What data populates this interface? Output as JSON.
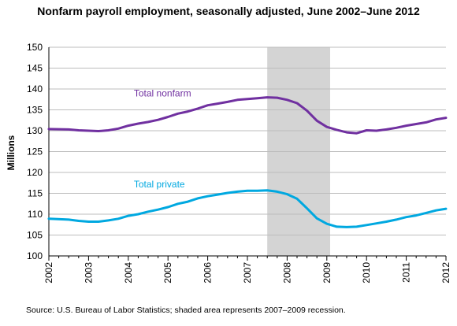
{
  "chart_data": {
    "type": "line",
    "title": "Nonfarm payroll employment, seasonally adjusted, June 2002–June 2012",
    "ylabel": "Millions",
    "xlabel": "",
    "ylim": [
      100,
      150
    ],
    "yticks": [
      100,
      105,
      110,
      115,
      120,
      125,
      130,
      135,
      140,
      145,
      150
    ],
    "xlim": [
      2002.0,
      2012.0
    ],
    "xticks": [
      "2002",
      "2003",
      "2004",
      "2005",
      "2006",
      "2007",
      "2008",
      "2009",
      "2010",
      "2011",
      "2012"
    ],
    "grid": "horizontal",
    "shaded_region": {
      "x": [
        2007.5,
        2009.083
      ]
    },
    "series": [
      {
        "name": "Total nonfarm",
        "color": "#7030a0",
        "x": [
          2002.0,
          2002.5,
          2002.75,
          2003.0,
          2003.25,
          2003.5,
          2003.75,
          2004.0,
          2004.25,
          2004.5,
          2004.75,
          2005.0,
          2005.25,
          2005.5,
          2005.75,
          2006.0,
          2006.25,
          2006.5,
          2006.75,
          2007.0,
          2007.25,
          2007.5,
          2007.75,
          2008.0,
          2008.25,
          2008.5,
          2008.75,
          2009.0,
          2009.25,
          2009.5,
          2009.75,
          2010.0,
          2010.25,
          2010.5,
          2010.75,
          2011.0,
          2011.25,
          2011.5,
          2011.75,
          2012.0
        ],
        "values": [
          130.4,
          130.3,
          130.1,
          130.0,
          129.9,
          130.1,
          130.5,
          131.2,
          131.7,
          132.1,
          132.6,
          133.3,
          134.1,
          134.6,
          135.3,
          136.1,
          136.5,
          136.9,
          137.4,
          137.6,
          137.8,
          138.0,
          137.9,
          137.4,
          136.6,
          134.8,
          132.4,
          130.9,
          130.2,
          129.6,
          129.4,
          130.1,
          130.0,
          130.3,
          130.7,
          131.2,
          131.6,
          132.0,
          132.7,
          133.1
        ]
      },
      {
        "name": "Total private",
        "color": "#00a8e0",
        "x": [
          2002.0,
          2002.5,
          2002.75,
          2003.0,
          2003.25,
          2003.5,
          2003.75,
          2004.0,
          2004.25,
          2004.5,
          2004.75,
          2005.0,
          2005.25,
          2005.5,
          2005.75,
          2006.0,
          2006.25,
          2006.5,
          2006.75,
          2007.0,
          2007.25,
          2007.5,
          2007.75,
          2008.0,
          2008.25,
          2008.5,
          2008.75,
          2009.0,
          2009.25,
          2009.5,
          2009.75,
          2010.0,
          2010.25,
          2010.5,
          2010.75,
          2011.0,
          2011.25,
          2011.5,
          2011.75,
          2012.0
        ],
        "values": [
          108.9,
          108.7,
          108.4,
          108.2,
          108.2,
          108.5,
          108.9,
          109.6,
          110.0,
          110.6,
          111.1,
          111.7,
          112.5,
          113.0,
          113.8,
          114.3,
          114.7,
          115.1,
          115.4,
          115.6,
          115.6,
          115.7,
          115.4,
          114.8,
          113.7,
          111.4,
          109.0,
          107.7,
          107.0,
          106.9,
          107.0,
          107.4,
          107.8,
          108.2,
          108.7,
          109.3,
          109.7,
          110.3,
          110.9,
          111.3
        ]
      }
    ]
  },
  "source_note": "Source: U.S. Bureau of Labor Statistics; shaded area represents 2007–2009 recession."
}
